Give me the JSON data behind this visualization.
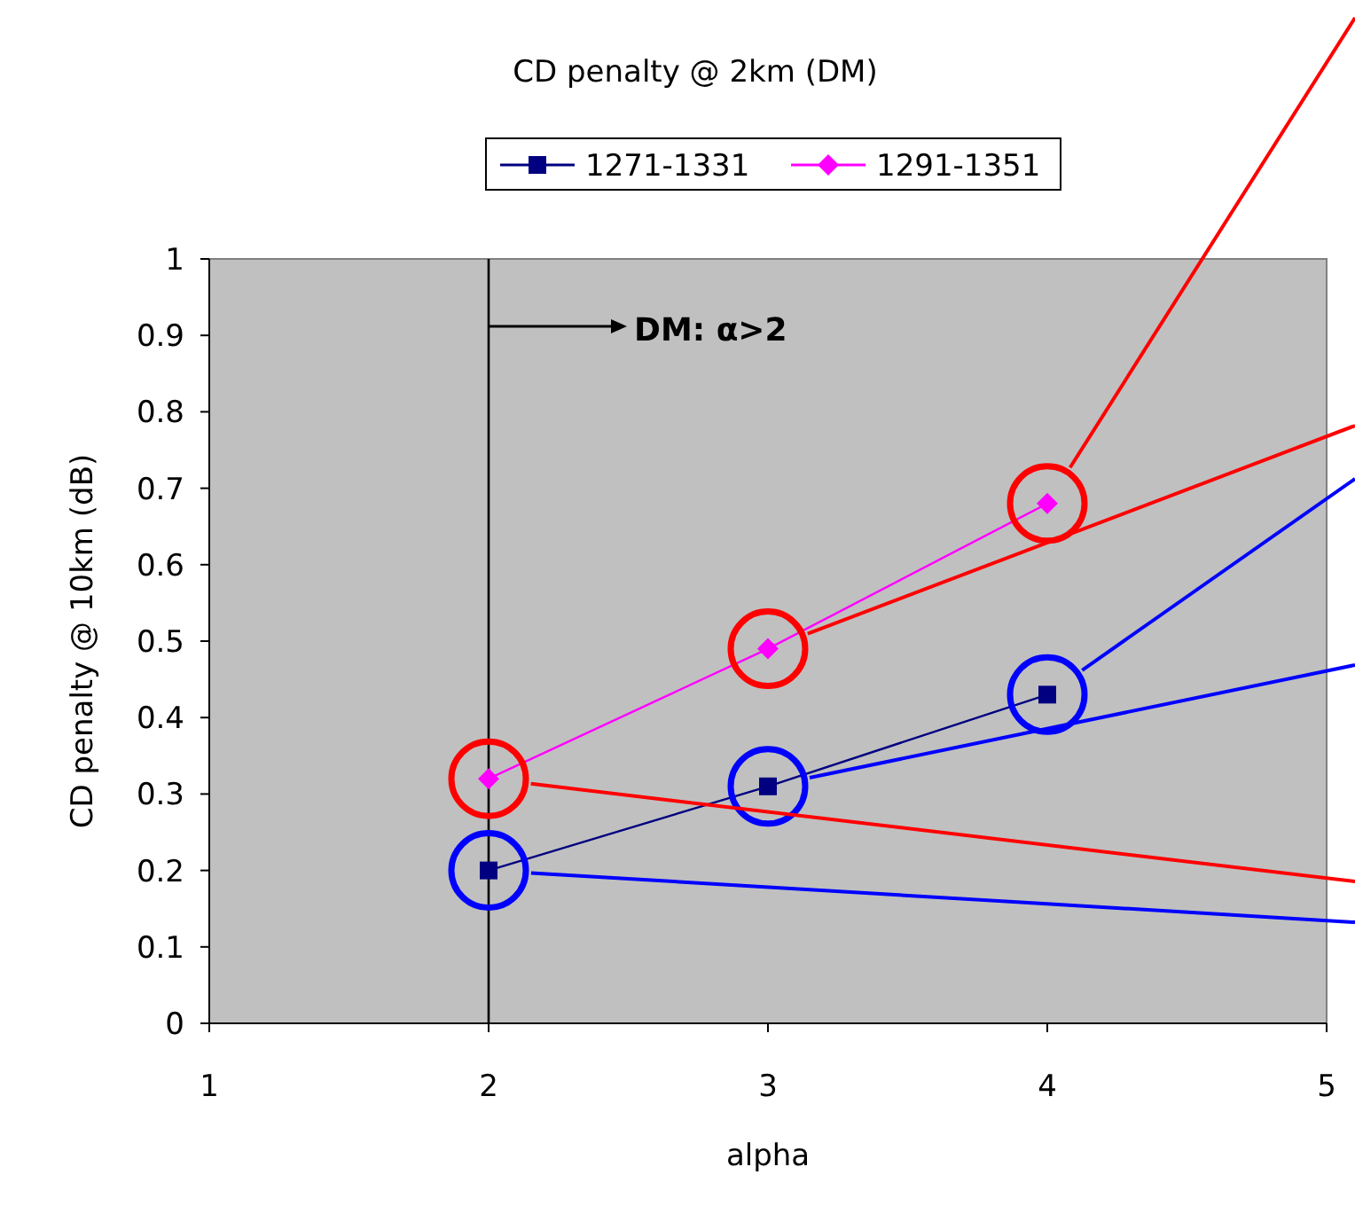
{
  "chart_data": {
    "type": "line",
    "title": "CD penalty @ 2km (DM)",
    "xlabel": "alpha",
    "ylabel": "CD penalty @ 10km (dB)",
    "x": [
      2,
      3,
      4
    ],
    "series": [
      {
        "name": "1271-1331",
        "color": "#000080",
        "marker": "square",
        "values": [
          0.2,
          0.31,
          0.43
        ]
      },
      {
        "name": "1291-1351",
        "color": "#ff00ff",
        "marker": "diamond",
        "values": [
          0.32,
          0.49,
          0.68
        ]
      }
    ],
    "xlim": [
      1,
      5
    ],
    "xticks": [
      1,
      2,
      3,
      4,
      5
    ],
    "ylim": [
      0,
      1
    ],
    "yticks": [
      0,
      0.1,
      0.2,
      0.3,
      0.4,
      0.5,
      0.6,
      0.7,
      0.8,
      0.9,
      1
    ],
    "ref_lines": [
      {
        "axis": "x",
        "value": 2,
        "label": "DM: α>2",
        "color": "#000000"
      }
    ],
    "grid": false,
    "legend": "top",
    "line_style": "solid"
  }
}
